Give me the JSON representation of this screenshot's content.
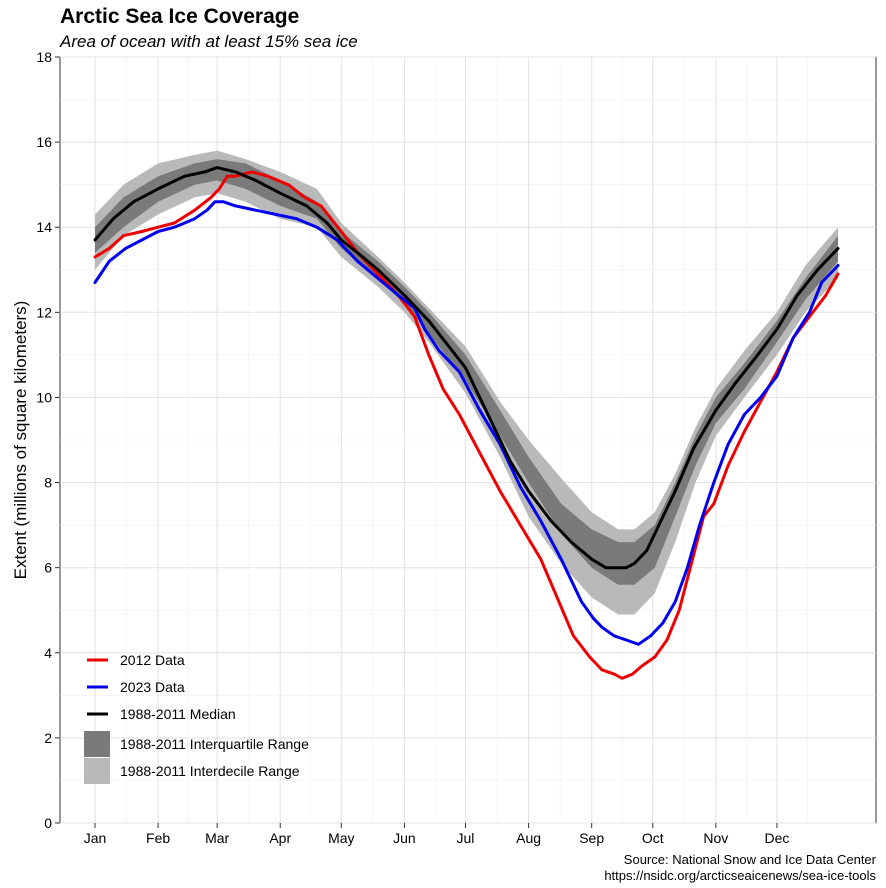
{
  "chart_data": {
    "type": "line",
    "title": "Arctic Sea Ice Coverage",
    "subtitle": "Area of ocean with at least 15% sea ice",
    "ylabel": "Extent (millions of square kilometers)",
    "xlabel": "",
    "ylim": [
      0,
      18
    ],
    "yticks": [
      0,
      2,
      4,
      6,
      8,
      10,
      12,
      14,
      16,
      18
    ],
    "xlim": [
      1,
      366
    ],
    "months": [
      {
        "label": "Jan",
        "day": 1
      },
      {
        "label": "Feb",
        "day": 32
      },
      {
        "label": "Mar",
        "day": 61
      },
      {
        "label": "Apr",
        "day": 92
      },
      {
        "label": "May",
        "day": 122
      },
      {
        "label": "Jun",
        "day": 153
      },
      {
        "label": "Jul",
        "day": 183
      },
      {
        "label": "Aug",
        "day": 214
      },
      {
        "label": "Sep",
        "day": 245
      },
      {
        "label": "Oct",
        "day": 275
      },
      {
        "label": "Nov",
        "day": 306
      },
      {
        "label": "Dec",
        "day": 336
      }
    ],
    "grid": true,
    "legend_position": "bottom-left",
    "legend": [
      {
        "label": "2012 Data",
        "color": "#ee0000",
        "kind": "line"
      },
      {
        "label": "2023 Data",
        "color": "#0000ee",
        "kind": "line"
      },
      {
        "label": "1988-2011 Median",
        "color": "#000000",
        "kind": "line"
      },
      {
        "label": "1988-2011 Interquartile Range",
        "color": "#7a7a7a",
        "kind": "fill"
      },
      {
        "label": "1988-2011 Interdecile Range",
        "color": "#b9b9b9",
        "kind": "fill"
      }
    ],
    "series": [
      {
        "name": "2012 Data",
        "color": "#ee0000",
        "x": [
          1,
          8,
          15,
          24,
          32,
          40,
          50,
          58,
          62,
          66,
          70,
          78,
          86,
          96,
          104,
          112,
          122,
          130,
          140,
          150,
          158,
          165,
          172,
          180,
          190,
          200,
          210,
          220,
          228,
          236,
          244,
          250,
          256,
          260,
          265,
          270,
          276,
          282,
          288,
          294,
          300,
          305,
          312,
          320,
          328,
          336,
          344,
          352,
          360,
          366
        ],
        "y": [
          13.3,
          13.5,
          13.8,
          13.9,
          14.0,
          14.1,
          14.4,
          14.7,
          14.9,
          15.2,
          15.2,
          15.3,
          15.2,
          15.0,
          14.7,
          14.5,
          13.9,
          13.4,
          12.9,
          12.4,
          11.9,
          11.0,
          10.2,
          9.6,
          8.7,
          7.8,
          7.0,
          6.2,
          5.3,
          4.4,
          3.9,
          3.6,
          3.5,
          3.4,
          3.5,
          3.7,
          3.9,
          4.3,
          5.0,
          6.1,
          7.2,
          7.5,
          8.4,
          9.2,
          9.9,
          10.6,
          11.4,
          11.9,
          12.4,
          12.9
        ]
      },
      {
        "name": "2023 Data",
        "color": "#0000ee",
        "x": [
          1,
          8,
          16,
          24,
          32,
          40,
          50,
          56,
          60,
          64,
          70,
          80,
          90,
          100,
          110,
          120,
          130,
          140,
          150,
          158,
          163,
          170,
          180,
          190,
          200,
          210,
          220,
          230,
          240,
          246,
          250,
          256,
          262,
          268,
          274,
          280,
          286,
          292,
          298,
          305,
          312,
          320,
          328,
          336,
          344,
          352,
          358,
          366
        ],
        "y": [
          12.7,
          13.2,
          13.5,
          13.7,
          13.9,
          14.0,
          14.2,
          14.4,
          14.6,
          14.6,
          14.5,
          14.4,
          14.3,
          14.2,
          14.0,
          13.7,
          13.2,
          12.8,
          12.4,
          12.1,
          11.6,
          11.1,
          10.6,
          9.7,
          8.9,
          7.9,
          7.1,
          6.2,
          5.2,
          4.8,
          4.6,
          4.4,
          4.3,
          4.2,
          4.4,
          4.7,
          5.2,
          6.0,
          7.0,
          8.0,
          8.9,
          9.6,
          10.0,
          10.5,
          11.4,
          12.0,
          12.7,
          13.1
        ]
      },
      {
        "name": "1988-2011 Median",
        "color": "#000000",
        "x": [
          1,
          10,
          20,
          32,
          45,
          55,
          61,
          70,
          80,
          92,
          105,
          115,
          122,
          130,
          140,
          153,
          165,
          183,
          195,
          205,
          214,
          225,
          235,
          245,
          252,
          258,
          262,
          266,
          272,
          278,
          286,
          295,
          306,
          315,
          325,
          336,
          346,
          356,
          366
        ],
        "y": [
          13.7,
          14.2,
          14.6,
          14.9,
          15.2,
          15.3,
          15.4,
          15.3,
          15.1,
          14.8,
          14.5,
          14.1,
          13.7,
          13.4,
          13.0,
          12.4,
          11.8,
          10.7,
          9.5,
          8.5,
          7.8,
          7.1,
          6.6,
          6.2,
          6.0,
          6.0,
          6.0,
          6.1,
          6.4,
          7.0,
          7.8,
          8.8,
          9.7,
          10.3,
          10.9,
          11.6,
          12.4,
          13.0,
          13.5
        ]
      }
    ],
    "ranges": [
      {
        "name": "1988-2011 Interdecile Range",
        "color": "#b9b9b9",
        "x": [
          1,
          15,
          32,
          50,
          61,
          75,
          92,
          110,
          122,
          140,
          153,
          165,
          183,
          200,
          214,
          230,
          245,
          258,
          266,
          276,
          286,
          296,
          306,
          320,
          336,
          350,
          366
        ],
        "upper": [
          14.3,
          15.0,
          15.5,
          15.7,
          15.8,
          15.6,
          15.3,
          14.9,
          14.1,
          13.3,
          12.7,
          12.1,
          11.2,
          9.9,
          9.0,
          8.1,
          7.3,
          6.9,
          6.9,
          7.3,
          8.2,
          9.3,
          10.2,
          11.1,
          12.0,
          13.1,
          14.0
        ],
        "lower": [
          13.0,
          13.8,
          14.3,
          14.7,
          14.8,
          14.6,
          14.2,
          14.0,
          13.3,
          12.6,
          12.0,
          11.3,
          10.1,
          8.6,
          7.2,
          6.1,
          5.3,
          4.9,
          4.9,
          5.4,
          6.6,
          8.0,
          9.1,
          10.0,
          11.0,
          12.0,
          12.8
        ]
      },
      {
        "name": "1988-2011 Interquartile Range",
        "color": "#7a7a7a",
        "x": [
          1,
          15,
          32,
          50,
          61,
          75,
          92,
          110,
          122,
          140,
          153,
          165,
          183,
          200,
          214,
          230,
          245,
          258,
          266,
          276,
          286,
          296,
          306,
          320,
          336,
          350,
          366
        ],
        "upper": [
          14.0,
          14.7,
          15.2,
          15.5,
          15.6,
          15.5,
          15.1,
          14.6,
          13.9,
          13.2,
          12.6,
          12.0,
          11.0,
          9.7,
          8.6,
          7.5,
          6.9,
          6.6,
          6.6,
          7.0,
          8.0,
          9.1,
          10.0,
          10.8,
          11.8,
          12.8,
          13.8
        ],
        "lower": [
          13.4,
          14.0,
          14.6,
          15.0,
          15.1,
          14.9,
          14.5,
          14.2,
          13.5,
          12.8,
          12.2,
          11.5,
          10.4,
          9.1,
          8.0,
          6.8,
          6.0,
          5.6,
          5.6,
          6.0,
          7.2,
          8.4,
          9.4,
          10.2,
          11.3,
          12.3,
          13.2
        ]
      }
    ]
  },
  "source": {
    "line1": "Source: National Snow and Ice Data Center",
    "line2": "https://nsidc.org/arcticseaicenews/sea-ice-tools"
  }
}
